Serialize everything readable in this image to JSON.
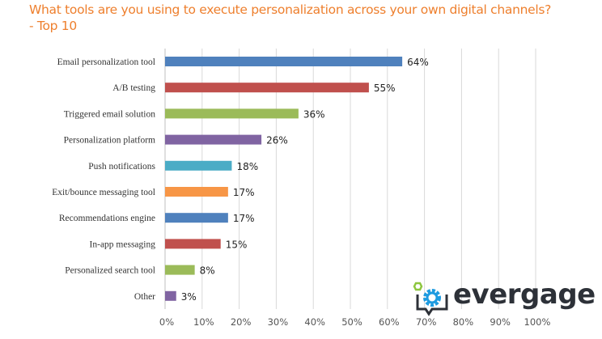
{
  "chart_data": {
    "type": "bar",
    "orientation": "horizontal",
    "title": "What tools are you using to execute personalization across your own digital channels?",
    "subtitle": "- Top 10",
    "categories": [
      "Email personalization tool",
      "A/B testing",
      "Triggered email solution",
      "Personalization platform",
      "Push notifications",
      "Exit/bounce messaging tool",
      "Recommendations engine",
      "In-app messaging",
      "Personalized search tool",
      "Other"
    ],
    "values": [
      64,
      55,
      36,
      26,
      18,
      17,
      17,
      15,
      8,
      3
    ],
    "value_labels": [
      "64%",
      "55%",
      "36%",
      "26%",
      "18%",
      "17%",
      "17%",
      "15%",
      "8%",
      "3%"
    ],
    "colors": [
      "#4f81bd",
      "#c0504d",
      "#9bbb59",
      "#8064a2",
      "#4bacc6",
      "#f79646",
      "#4f81bd",
      "#c0504d",
      "#9bbb59",
      "#8064a2"
    ],
    "xlim": [
      0,
      100
    ],
    "xticks": [
      "0%",
      "10%",
      "20%",
      "30%",
      "40%",
      "50%",
      "60%",
      "70%",
      "80%",
      "90%",
      "100%"
    ],
    "grid": true,
    "xlabel": "",
    "ylabel": ""
  },
  "logo": {
    "text": "evergage"
  }
}
